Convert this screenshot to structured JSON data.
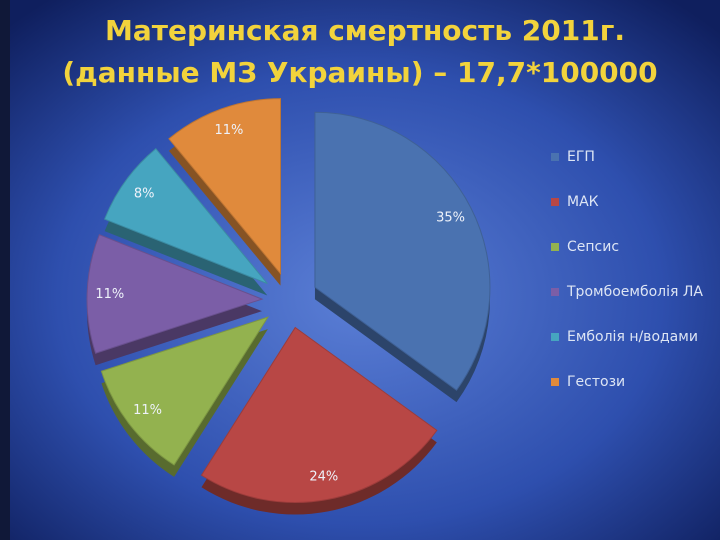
{
  "chart_data": {
    "type": "pie",
    "title": [
      "Материнская смертность 2011г.",
      "(данные МЗ Украины) – 17,7*100000"
    ],
    "categories": [
      "ЕГП",
      "МАК",
      "Сепсис",
      "Тромбоемболія ЛА",
      "Емболія н/водами",
      "Гестози"
    ],
    "values": [
      35,
      24,
      11,
      11,
      8,
      11
    ],
    "value_labels": [
      "35%",
      "24%",
      "11%",
      "11%",
      "8%",
      "11%"
    ],
    "colors": [
      "#4a72b0",
      "#b84745",
      "#93b24f",
      "#7b5ea7",
      "#46a5c0",
      "#e08a3c"
    ],
    "legend": "right"
  }
}
